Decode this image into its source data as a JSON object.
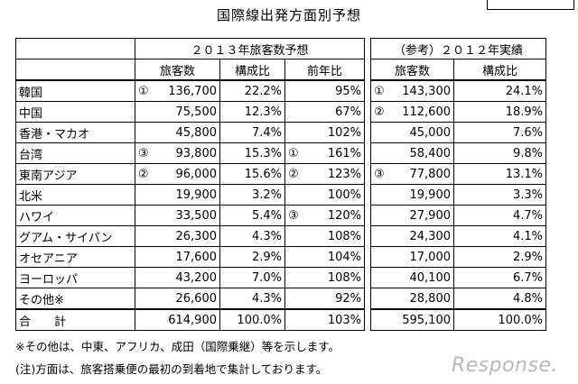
{
  "title": "国際線出発方面別予想",
  "headers": {
    "group_2013": "２０１３年旅客数予想",
    "group_2012": "（参考）２０１２年実績",
    "cols_2013": [
      "旅客数",
      "構成比",
      "前年比"
    ],
    "cols_2012": [
      "旅客数",
      "構成比"
    ]
  },
  "rows": [
    {
      "region": "韓国",
      "m13": "①",
      "p13": "136,700",
      "s13": "22.2%",
      "ym": "",
      "yoy": "95%",
      "m12": "①",
      "p12": "143,300",
      "s12": "24.1%"
    },
    {
      "region": "中国",
      "m13": "",
      "p13": "75,500",
      "s13": "12.3%",
      "ym": "",
      "yoy": "67%",
      "m12": "②",
      "p12": "112,600",
      "s12": "18.9%"
    },
    {
      "region": "香港・マカオ",
      "m13": "",
      "p13": "45,800",
      "s13": "7.4%",
      "ym": "",
      "yoy": "102%",
      "m12": "",
      "p12": "45,000",
      "s12": "7.6%"
    },
    {
      "region": "台湾",
      "m13": "③",
      "p13": "93,800",
      "s13": "15.3%",
      "ym": "①",
      "yoy": "161%",
      "m12": "",
      "p12": "58,400",
      "s12": "9.8%"
    },
    {
      "region": "東南アジア",
      "m13": "②",
      "p13": "96,000",
      "s13": "15.6%",
      "ym": "②",
      "yoy": "123%",
      "m12": "③",
      "p12": "77,800",
      "s12": "13.1%"
    },
    {
      "region": "北米",
      "m13": "",
      "p13": "19,900",
      "s13": "3.2%",
      "ym": "",
      "yoy": "100%",
      "m12": "",
      "p12": "19,900",
      "s12": "3.3%"
    },
    {
      "region": "ハワイ",
      "m13": "",
      "p13": "33,500",
      "s13": "5.4%",
      "ym": "③",
      "yoy": "120%",
      "m12": "",
      "p12": "27,900",
      "s12": "4.7%"
    },
    {
      "region": "グアム・サイパン",
      "m13": "",
      "p13": "26,300",
      "s13": "4.3%",
      "ym": "",
      "yoy": "108%",
      "m12": "",
      "p12": "24,300",
      "s12": "4.1%"
    },
    {
      "region": "オセアニア",
      "m13": "",
      "p13": "17,600",
      "s13": "2.9%",
      "ym": "",
      "yoy": "104%",
      "m12": "",
      "p12": "17,000",
      "s12": "2.9%"
    },
    {
      "region": "ヨーロッパ",
      "m13": "",
      "p13": "43,200",
      "s13": "7.0%",
      "ym": "",
      "yoy": "108%",
      "m12": "",
      "p12": "40,100",
      "s12": "6.7%"
    },
    {
      "region": "その他※",
      "m13": "",
      "p13": "26,600",
      "s13": "4.3%",
      "ym": "",
      "yoy": "92%",
      "m12": "",
      "p12": "28,800",
      "s12": "4.8%"
    }
  ],
  "total": {
    "region": "合　　計",
    "p13": "614,900",
    "s13": "100.0%",
    "yoy": "103%",
    "p12": "595,100",
    "s12": "100.0%"
  },
  "notes": [
    "※その他は、中東、アフリカ、成田（国際乗継）等を示します。",
    "(注)方面は、旅客搭乗便の最初の到着地で集計しております。"
  ],
  "logo_text": "Response."
}
